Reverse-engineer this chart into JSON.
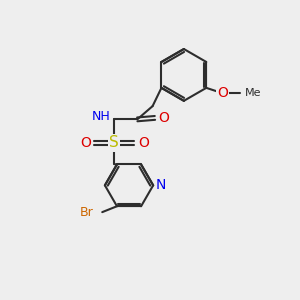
{
  "background_color": "#eeeeee",
  "bond_color": "#2d2d2d",
  "atom_colors": {
    "N": "#0000ee",
    "O": "#dd0000",
    "S": "#bbbb00",
    "Br": "#cc6600",
    "H": "#778899",
    "C": "#2d2d2d"
  },
  "font_size": 9,
  "bond_width": 1.5
}
